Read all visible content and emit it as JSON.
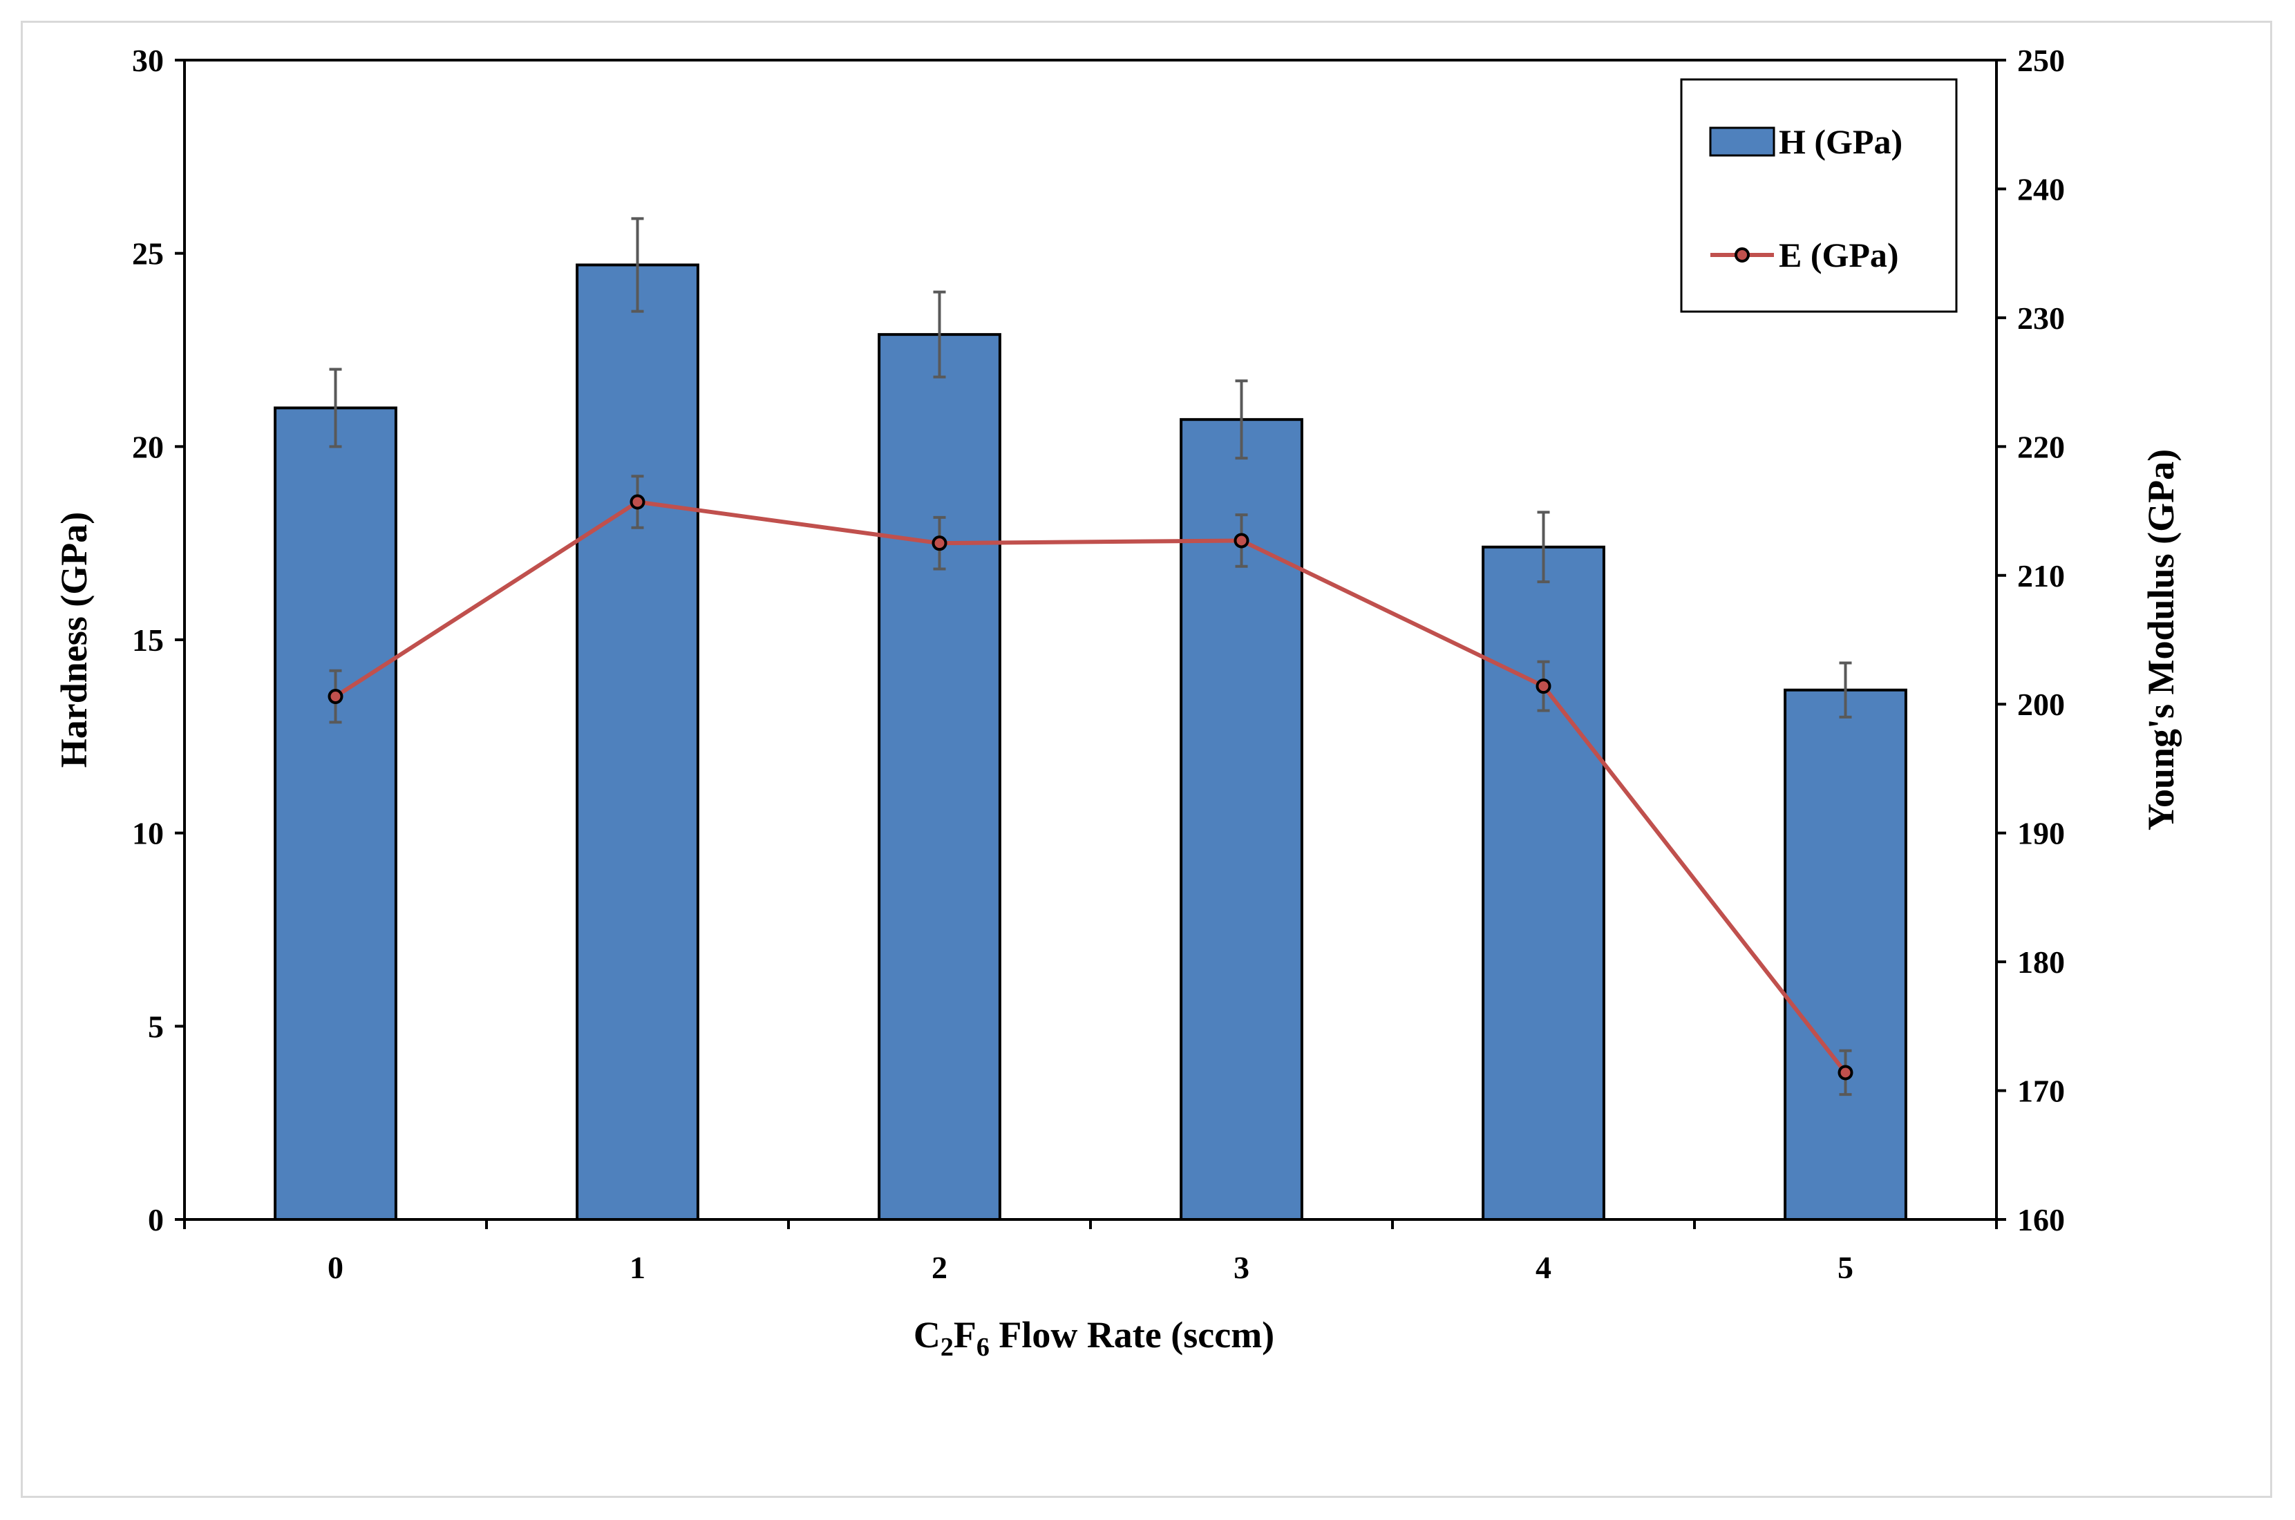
{
  "chart_data": {
    "type": "bar",
    "title": "",
    "categories": [
      "0",
      "1",
      "2",
      "3",
      "4",
      "5"
    ],
    "series": [
      {
        "name": "H (GPa)",
        "type": "bar",
        "axis": "left",
        "color": "#4f81bd",
        "values": [
          21.0,
          24.7,
          22.9,
          20.7,
          17.4,
          13.7
        ],
        "errors": [
          1.0,
          1.2,
          1.1,
          1.0,
          0.9,
          0.7
        ]
      },
      {
        "name": "E (GPa)",
        "type": "line",
        "axis": "right",
        "color": "#c0504d",
        "values": [
          200.6,
          215.7,
          212.5,
          212.7,
          201.4,
          171.4
        ],
        "errors": [
          2.0,
          2.0,
          2.0,
          2.0,
          1.9,
          1.7
        ]
      }
    ],
    "xlabel": {
      "main": "C",
      "sub1": "2",
      "mid": "F",
      "sub2": "6",
      "rest": " Flow Rate (sccm)"
    },
    "ylabel": "Hardness (GPa)",
    "y2label": "Young's Modulus (GPa)",
    "ylim": [
      0,
      30
    ],
    "yticks": [
      0,
      5,
      10,
      15,
      20,
      25,
      30
    ],
    "y2lim": [
      160,
      250
    ],
    "y2ticks": [
      160,
      170,
      180,
      190,
      200,
      210,
      220,
      230,
      240,
      250
    ],
    "grid": false,
    "legend_position": "top-right",
    "error_bar_color": "#595959"
  }
}
